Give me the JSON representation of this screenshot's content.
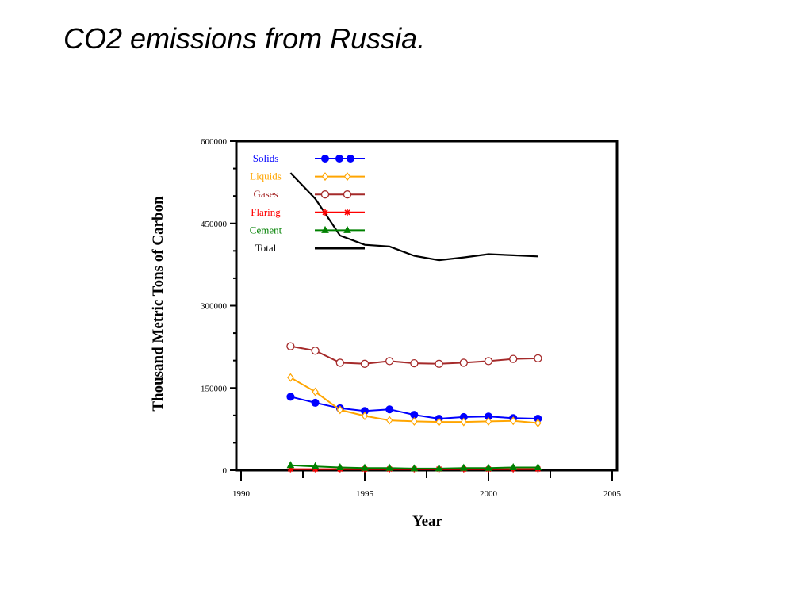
{
  "slide": {
    "title": "CO2 emissions from Russia."
  },
  "chart_data": {
    "type": "line",
    "title": "",
    "xlabel": "Year",
    "ylabel": "Thousand Metric Tons of Carbon",
    "xlim": [
      1990,
      2005
    ],
    "ylim": [
      0,
      600000
    ],
    "x_ticks": [
      "1990",
      "1995",
      "2000",
      "2005"
    ],
    "y_ticks": [
      "0",
      "150000",
      "300000",
      "450000",
      "600000"
    ],
    "legend_position": "top-left",
    "grid": false,
    "x": [
      1992,
      1993,
      1994,
      1995,
      1996,
      1997,
      1998,
      1999,
      2000,
      2001,
      2002
    ],
    "series": [
      {
        "name": "Solids",
        "color": "#0000ff",
        "marker": "filled-circle",
        "values": [
          134000,
          123000,
          113000,
          108000,
          111000,
          101000,
          94000,
          97000,
          98000,
          95000,
          94000
        ]
      },
      {
        "name": "Liquids",
        "color": "#ffa500",
        "marker": "diamond",
        "values": [
          169000,
          143000,
          110000,
          99000,
          91000,
          89000,
          88000,
          88000,
          89000,
          90000,
          86000
        ]
      },
      {
        "name": "Gases",
        "color": "#a52a2a",
        "marker": "open-circle",
        "values": [
          226000,
          218000,
          196000,
          194000,
          199000,
          195000,
          194000,
          196000,
          199000,
          203000,
          204000
        ]
      },
      {
        "name": "Flaring",
        "color": "#ff0000",
        "marker": "asterisk",
        "values": [
          2000,
          2000,
          2000,
          2000,
          2000,
          2000,
          2000,
          2000,
          2000,
          2000,
          2000
        ]
      },
      {
        "name": "Cement",
        "color": "#008000",
        "marker": "triangle",
        "values": [
          9000,
          7000,
          5000,
          4000,
          4000,
          3000,
          3000,
          4000,
          4000,
          5000,
          5000
        ]
      },
      {
        "name": "Total",
        "color": "#000000",
        "marker": "none",
        "values": [
          542000,
          495000,
          428000,
          411000,
          408000,
          391000,
          383000,
          388000,
          394000,
          392000,
          390000
        ]
      }
    ]
  }
}
